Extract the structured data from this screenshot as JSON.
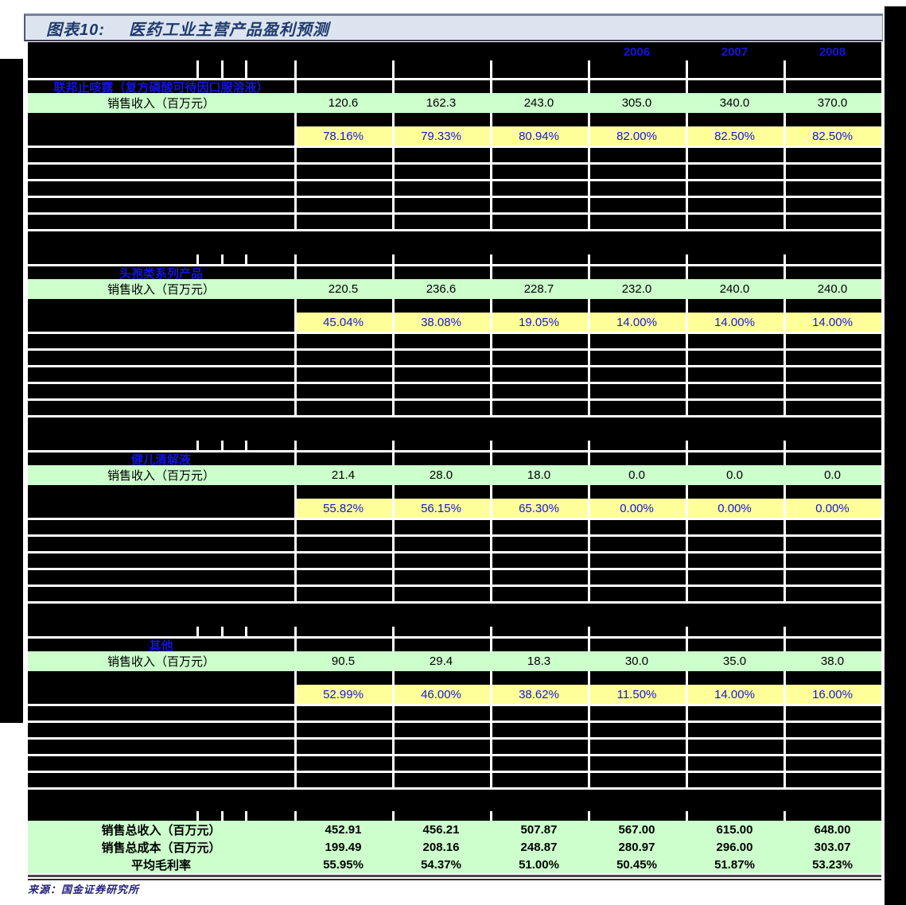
{
  "title": {
    "prefix": "图表10:",
    "text": "医药工业主营产品盈利预测"
  },
  "header": {
    "years": [
      "2006",
      "2007",
      "2008"
    ]
  },
  "sections": [
    {
      "name": "联邦止咳露（复方磷酸可待因口服溶液）",
      "revenue_label": "销售收入（百万元）",
      "revenue": [
        "120.6",
        "162.3",
        "243.0",
        "305.0",
        "340.0",
        "370.0"
      ],
      "margin": [
        "78.16%",
        "79.33%",
        "80.94%",
        "82.00%",
        "82.50%",
        "82.50%"
      ]
    },
    {
      "name": "头孢类系列产品",
      "revenue_label": "销售收入（百万元）",
      "revenue": [
        "220.5",
        "236.6",
        "228.7",
        "232.0",
        "240.0",
        "240.0"
      ],
      "margin": [
        "45.04%",
        "38.08%",
        "19.05%",
        "14.00%",
        "14.00%",
        "14.00%"
      ]
    },
    {
      "name": "健儿清解液",
      "revenue_label": "销售收入（百万元）",
      "revenue": [
        "21.4",
        "28.0",
        "18.0",
        "0.0",
        "0.0",
        "0.0"
      ],
      "margin": [
        "55.82%",
        "56.15%",
        "65.30%",
        "0.00%",
        "0.00%",
        "0.00%"
      ]
    },
    {
      "name": "其他",
      "revenue_label": "销售收入（百万元）",
      "revenue": [
        "90.5",
        "29.4",
        "18.3",
        "30.0",
        "35.0",
        "38.0"
      ],
      "margin": [
        "52.99%",
        "46.00%",
        "38.62%",
        "11.50%",
        "14.00%",
        "16.00%"
      ]
    }
  ],
  "summary": {
    "rows": [
      {
        "label": "销售总收入（百万元）",
        "values": [
          "452.91",
          "456.21",
          "507.87",
          "567.00",
          "615.00",
          "648.00"
        ]
      },
      {
        "label": "销售总成本（百万元）",
        "values": [
          "199.49",
          "208.16",
          "248.87",
          "280.97",
          "296.00",
          "303.07"
        ]
      },
      {
        "label": "平均毛利率",
        "values": [
          "55.95%",
          "54.37%",
          "51.00%",
          "50.45%",
          "51.87%",
          "53.23%"
        ]
      }
    ]
  },
  "source": "来源：国金证券研究所",
  "colors": {
    "row_green": "#ccffcc",
    "row_yellow": "#ffff99",
    "value_blue": "#1414dd",
    "title_blue": "#1e3a6e",
    "redacted": "#000000"
  },
  "chart_data": {
    "type": "table",
    "title": "医药工业主营产品盈利预测",
    "visible_year_columns": [
      "2006",
      "2007",
      "2008"
    ],
    "note": "three earlier year columns are redacted (black)",
    "products": [
      {
        "name": "联邦止咳露（复方磷酸可待因口服溶液）",
        "sales_revenue_mn": [
          120.6,
          162.3,
          243.0,
          305.0,
          340.0,
          370.0
        ],
        "gross_margin_pct": [
          78.16,
          79.33,
          80.94,
          82.0,
          82.5,
          82.5
        ]
      },
      {
        "name": "头孢类系列产品",
        "sales_revenue_mn": [
          220.5,
          236.6,
          228.7,
          232.0,
          240.0,
          240.0
        ],
        "gross_margin_pct": [
          45.04,
          38.08,
          19.05,
          14.0,
          14.0,
          14.0
        ]
      },
      {
        "name": "健儿清解液",
        "sales_revenue_mn": [
          21.4,
          28.0,
          18.0,
          0.0,
          0.0,
          0.0
        ],
        "gross_margin_pct": [
          55.82,
          56.15,
          65.3,
          0.0,
          0.0,
          0.0
        ]
      },
      {
        "name": "其他",
        "sales_revenue_mn": [
          90.5,
          29.4,
          18.3,
          30.0,
          35.0,
          38.0
        ],
        "gross_margin_pct": [
          52.99,
          46.0,
          38.62,
          11.5,
          14.0,
          16.0
        ]
      }
    ],
    "totals": {
      "total_revenue_mn": [
        452.91,
        456.21,
        507.87,
        567.0,
        615.0,
        648.0
      ],
      "total_cost_mn": [
        199.49,
        208.16,
        248.87,
        280.97,
        296.0,
        303.07
      ],
      "avg_gross_margin_pct": [
        55.95,
        54.37,
        51.0,
        50.45,
        51.87,
        53.23
      ]
    }
  }
}
